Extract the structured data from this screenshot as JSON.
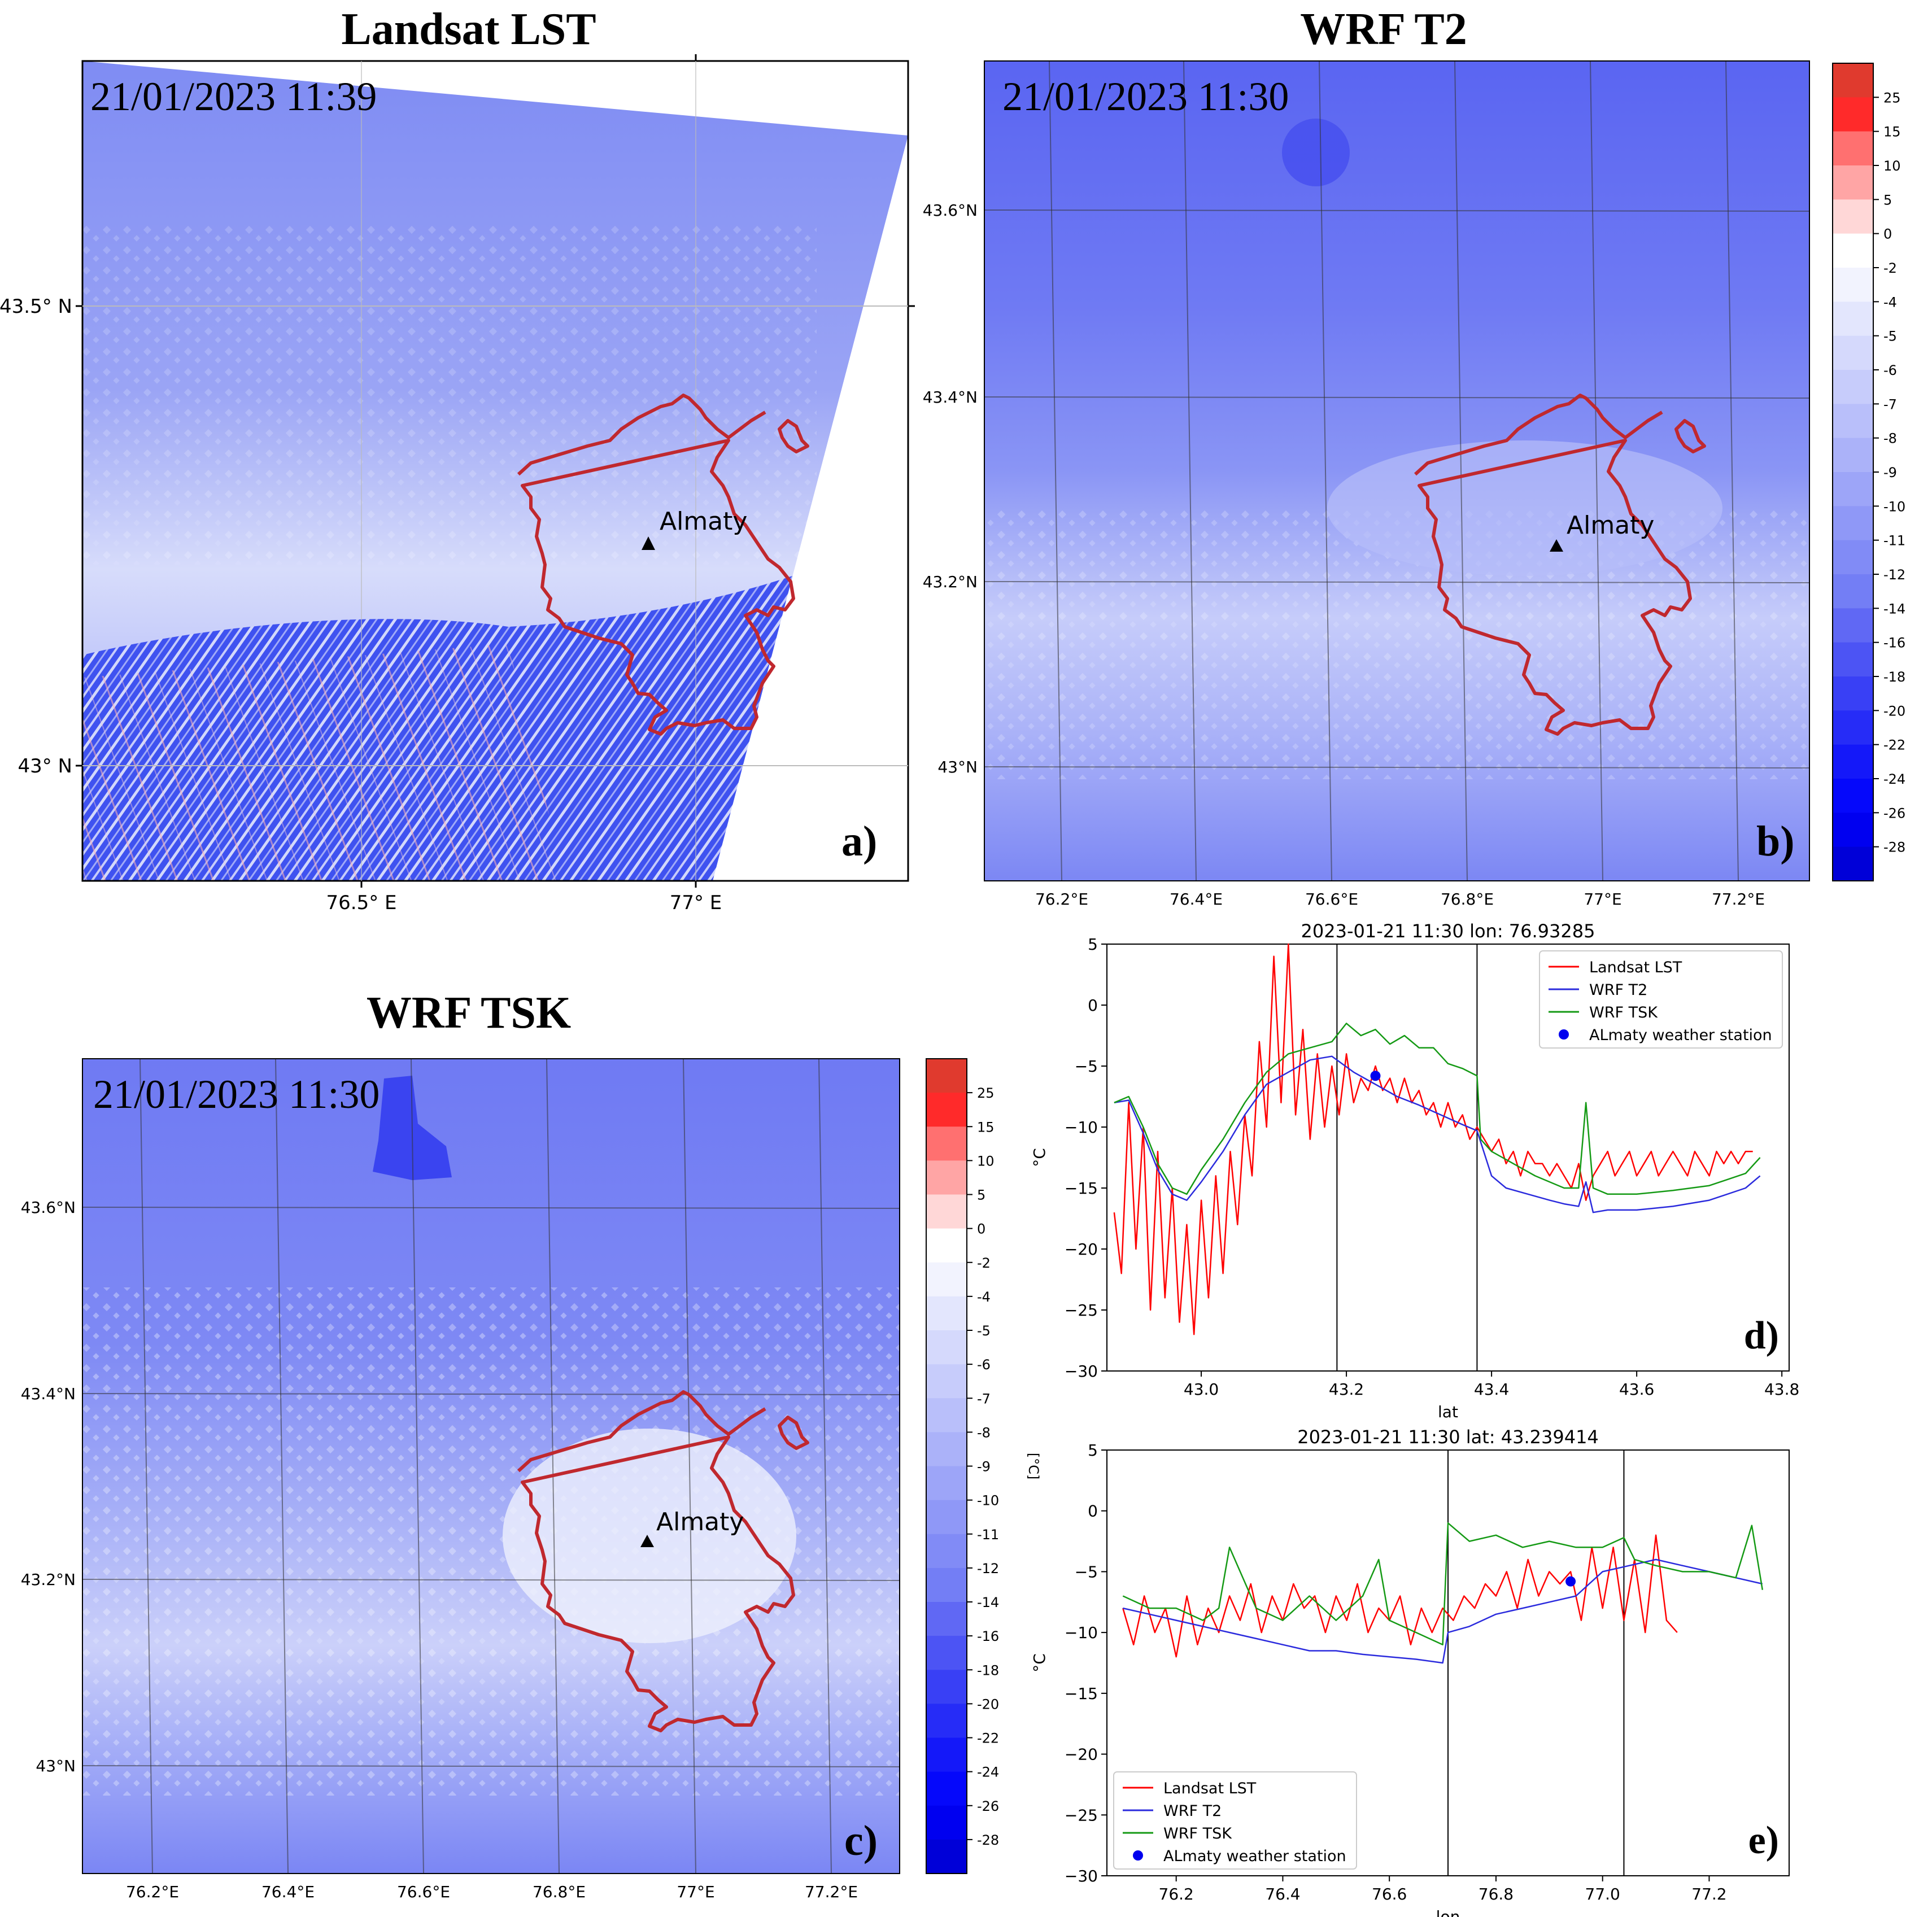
{
  "colors": {
    "map_dark": "#5566f2",
    "map_mid": "#7e8cf5",
    "map_light": "#c3c9f9",
    "map_white": "#f4f5fe",
    "boundary": "#c0282e",
    "lst_line": "#ff0000",
    "t2_line": "#2b2bdd",
    "tsk_line": "#159a15",
    "station": "#0000ee"
  },
  "icons": [
    "triangle-marker-icon",
    "station-dot-icon"
  ],
  "panels": {
    "a": {
      "title": "Landsat LST",
      "timestamp": "21/01/2023 11:39",
      "tag": "a)",
      "city": "Almaty",
      "xticks": [
        "76.5° E",
        "77° E"
      ],
      "yticks": [
        "43.5° N",
        "43° N"
      ]
    },
    "b": {
      "title": "WRF T2",
      "timestamp": "21/01/2023 11:30",
      "tag": "b)",
      "city": "Almaty",
      "xticks": [
        "76.2°E",
        "76.4°E",
        "76.6°E",
        "76.8°E",
        "77°E",
        "77.2°E"
      ],
      "yticks": [
        "43.6°N",
        "43.4°N",
        "43.2°N",
        "43°N"
      ]
    },
    "c": {
      "title": "WRF TSK",
      "timestamp": "21/01/2023 11:30",
      "tag": "c)",
      "city": "Almaty",
      "xticks": [
        "76.2°E",
        "76.4°E",
        "76.6°E",
        "76.8°E",
        "77°E",
        "77.2°E"
      ],
      "yticks": [
        "43.6°N",
        "43.4°N",
        "43.2°N",
        "43°N"
      ]
    }
  },
  "colorbar": {
    "unit": "[°C]",
    "ticks": [
      "25",
      "15",
      "10",
      "5",
      "0",
      "-2",
      "-4",
      "-5",
      "-6",
      "-7",
      "-8",
      "-9",
      "-10",
      "-11",
      "-12",
      "-14",
      "-16",
      "-18",
      "-20",
      "-22",
      "-24",
      "-26",
      "-28"
    ],
    "swatches": [
      "#e03a2e",
      "#ff2a2a",
      "#ff7070",
      "#ffa5a5",
      "#ffd7d7",
      "#ffffff",
      "#f2f3fe",
      "#e3e6fd",
      "#d5d9fc",
      "#c7ccfb",
      "#b9bffa",
      "#abb2f9",
      "#9da5f8",
      "#8f98f7",
      "#818bf6",
      "#737ef5",
      "#6068f4",
      "#4c54f4",
      "#3940f5",
      "#262cf7",
      "#1418f9",
      "#0508fb",
      "#0000f0",
      "#0000d8"
    ]
  },
  "chart_data": [
    {
      "type": "line",
      "panel": "d)",
      "title": "2023-01-21 11:30    lon: 76.93285",
      "xlabel": "lat",
      "ylabel": "°C",
      "xlim": [
        42.87,
        43.81
      ],
      "ylim": [
        -30,
        5
      ],
      "xticks": [
        43.0,
        43.2,
        43.4,
        43.6,
        43.8
      ],
      "xtick_labels": [
        "43.0",
        "43.2",
        "43.4",
        "43.6",
        "43.8"
      ],
      "yticks": [
        5,
        0,
        -5,
        -10,
        -15,
        -20,
        -25,
        -30
      ],
      "ytick_labels": [
        "5",
        "0",
        "−5",
        "−10",
        "−15",
        "−20",
        "−25",
        "−30"
      ],
      "vlines": [
        43.187,
        43.38
      ],
      "legend": [
        "Landsat LST",
        "WRF T2",
        "WRF TSK",
        "ALmaty weather station"
      ],
      "legend_loc": "upper right",
      "station": {
        "x": 43.24,
        "y": -5.8
      },
      "series": [
        {
          "name": "Landsat LST",
          "key": "lst",
          "x": [
            42.88,
            42.89,
            42.9,
            42.91,
            42.92,
            42.93,
            42.94,
            42.95,
            42.96,
            42.97,
            42.98,
            42.99,
            43.0,
            43.01,
            43.02,
            43.03,
            43.04,
            43.05,
            43.06,
            43.07,
            43.08,
            43.09,
            43.1,
            43.11,
            43.12,
            43.13,
            43.14,
            43.15,
            43.16,
            43.17,
            43.18,
            43.19,
            43.2,
            43.21,
            43.22,
            43.23,
            43.24,
            43.25,
            43.26,
            43.27,
            43.28,
            43.29,
            43.3,
            43.31,
            43.32,
            43.33,
            43.34,
            43.35,
            43.36,
            43.37,
            43.38,
            43.39,
            43.4,
            43.41,
            43.42,
            43.43,
            43.44,
            43.45,
            43.46,
            43.47,
            43.48,
            43.49,
            43.5,
            43.51,
            43.52,
            43.53,
            43.54,
            43.55,
            43.56,
            43.57,
            43.58,
            43.59,
            43.6,
            43.61,
            43.62,
            43.63,
            43.64,
            43.65,
            43.66,
            43.67,
            43.68,
            43.69,
            43.7,
            43.71,
            43.72,
            43.73,
            43.74,
            43.75,
            43.76
          ],
          "y": [
            -17,
            -22,
            -8,
            -20,
            -10,
            -25,
            -12,
            -24,
            -15,
            -26,
            -18,
            -27,
            -16,
            -24,
            -14,
            -22,
            -12,
            -18,
            -9,
            -14,
            -3,
            -10,
            4,
            -8,
            5,
            -9,
            -2,
            -11,
            -4,
            -10,
            -5,
            -9,
            -4,
            -8,
            -6,
            -7,
            -5,
            -7,
            -6,
            -8,
            -6,
            -8,
            -7,
            -9,
            -8,
            -10,
            -8,
            -10,
            -9,
            -11,
            -10,
            -11,
            -12,
            -11,
            -13,
            -12,
            -14,
            -12,
            -13,
            -13,
            -14,
            -13,
            -14,
            -15,
            -13,
            -16,
            -14,
            -13,
            -12,
            -14,
            -13,
            -12,
            -14,
            -13,
            -12,
            -14,
            -13,
            -12,
            -13,
            -14,
            -12,
            -13,
            -14,
            -12,
            -13,
            -12,
            -13,
            -12,
            -12
          ]
        },
        {
          "name": "WRF T2",
          "key": "t2",
          "x": [
            42.88,
            42.9,
            42.92,
            42.94,
            42.96,
            42.98,
            43.0,
            43.03,
            43.06,
            43.09,
            43.12,
            43.15,
            43.18,
            43.21,
            43.24,
            43.27,
            43.3,
            43.33,
            43.36,
            43.38,
            43.4,
            43.42,
            43.45,
            43.48,
            43.5,
            43.52,
            43.53,
            43.54,
            43.56,
            43.6,
            43.65,
            43.7,
            43.75,
            43.77
          ],
          "y": [
            -8,
            -7.8,
            -10.5,
            -13.5,
            -15.5,
            -16,
            -14.5,
            -12,
            -9,
            -6.5,
            -5.5,
            -4.5,
            -4.2,
            -5.5,
            -6.5,
            -7.5,
            -8.2,
            -9,
            -9.8,
            -10.3,
            -14,
            -15,
            -15.5,
            -16,
            -16.3,
            -16.5,
            -14.5,
            -17,
            -16.8,
            -16.8,
            -16.5,
            -16,
            -15,
            -14
          ]
        },
        {
          "name": "WRF TSK",
          "key": "tsk",
          "x": [
            42.88,
            42.9,
            42.92,
            42.94,
            42.96,
            42.98,
            43.0,
            43.03,
            43.06,
            43.09,
            43.12,
            43.15,
            43.18,
            43.2,
            43.22,
            43.24,
            43.26,
            43.28,
            43.3,
            43.32,
            43.34,
            43.36,
            43.38,
            43.385,
            43.4,
            43.43,
            43.46,
            43.5,
            43.52,
            43.53,
            43.54,
            43.56,
            43.6,
            43.65,
            43.7,
            43.75,
            43.77
          ],
          "y": [
            -8,
            -7.5,
            -10,
            -13,
            -15,
            -15.5,
            -13.5,
            -11,
            -8,
            -5.5,
            -4,
            -3.5,
            -3,
            -1.5,
            -2.5,
            -2,
            -3.2,
            -2.5,
            -3.5,
            -3.5,
            -4.8,
            -5.2,
            -5.8,
            -11,
            -12,
            -13,
            -14,
            -15,
            -15,
            -8,
            -15,
            -15.5,
            -15.5,
            -15.2,
            -14.8,
            -13.8,
            -12.5
          ]
        }
      ]
    },
    {
      "type": "line",
      "panel": "e)",
      "title": "2023-01-21 11:30     lat: 43.239414",
      "xlabel": "lon",
      "ylabel": "°C",
      "xlim": [
        76.07,
        77.35
      ],
      "ylim": [
        -30,
        5
      ],
      "xticks": [
        76.2,
        76.4,
        76.6,
        76.8,
        77.0,
        77.2
      ],
      "xtick_labels": [
        "76.2",
        "76.4",
        "76.6",
        "76.8",
        "77.0",
        "77.2"
      ],
      "yticks": [
        5,
        0,
        -5,
        -10,
        -15,
        -20,
        -25,
        -30
      ],
      "ytick_labels": [
        "5",
        "0",
        "−5",
        "−10",
        "−15",
        "−20",
        "−25",
        "−30"
      ],
      "vlines": [
        76.71,
        77.04
      ],
      "legend": [
        "Landsat LST",
        "WRF T2",
        "WRF TSK",
        "ALmaty weather station"
      ],
      "legend_loc": "lower left",
      "station": {
        "x": 76.94,
        "y": -5.8
      },
      "series": [
        {
          "name": "Landsat LST",
          "key": "lst",
          "x": [
            76.1,
            76.12,
            76.14,
            76.16,
            76.18,
            76.2,
            76.22,
            76.24,
            76.26,
            76.28,
            76.3,
            76.32,
            76.34,
            76.36,
            76.38,
            76.4,
            76.42,
            76.44,
            76.46,
            76.48,
            76.5,
            76.52,
            76.54,
            76.56,
            76.58,
            76.6,
            76.62,
            76.64,
            76.66,
            76.68,
            76.7,
            76.72,
            76.74,
            76.76,
            76.78,
            76.8,
            76.82,
            76.84,
            76.86,
            76.88,
            76.9,
            76.92,
            76.94,
            76.96,
            76.98,
            77.0,
            77.02,
            77.04,
            77.06,
            77.08,
            77.1,
            77.12,
            77.14
          ],
          "y": [
            -8,
            -11,
            -7,
            -10,
            -8,
            -12,
            -7,
            -11,
            -8,
            -10,
            -7,
            -9,
            -6,
            -10,
            -7,
            -9,
            -6,
            -8,
            -7,
            -10,
            -7,
            -9,
            -6,
            -10,
            -8,
            -9,
            -7,
            -11,
            -8,
            -10,
            -8,
            -9,
            -7,
            -8,
            -6,
            -7,
            -5,
            -8,
            -4,
            -7,
            -5,
            -6,
            -5,
            -9,
            -3,
            -8,
            -3,
            -9,
            -4,
            -10,
            -2,
            -9,
            -10
          ]
        },
        {
          "name": "WRF T2",
          "key": "t2",
          "x": [
            76.1,
            76.15,
            76.2,
            76.25,
            76.3,
            76.35,
            76.4,
            76.45,
            76.5,
            76.55,
            76.6,
            76.65,
            76.7,
            76.71,
            76.75,
            76.8,
            76.85,
            76.9,
            76.95,
            77.0,
            77.05,
            77.1,
            77.15,
            77.2,
            77.25,
            77.3
          ],
          "y": [
            -8,
            -8.5,
            -9,
            -9.5,
            -10,
            -10.5,
            -11,
            -11.5,
            -11.5,
            -11.8,
            -12,
            -12.2,
            -12.5,
            -10,
            -9.5,
            -8.5,
            -8,
            -7.5,
            -7,
            -5,
            -4.5,
            -4,
            -4.5,
            -5,
            -5.5,
            -6
          ]
        },
        {
          "name": "WRF TSK",
          "key": "tsk",
          "x": [
            76.1,
            76.15,
            76.2,
            76.25,
            76.28,
            76.3,
            76.35,
            76.4,
            76.45,
            76.5,
            76.55,
            76.58,
            76.6,
            76.65,
            76.7,
            76.71,
            76.75,
            76.8,
            76.85,
            76.9,
            76.95,
            77.0,
            77.04,
            77.06,
            77.1,
            77.15,
            77.2,
            77.25,
            77.28,
            77.3
          ],
          "y": [
            -7,
            -8,
            -8,
            -9,
            -8,
            -3,
            -8,
            -9,
            -7,
            -9,
            -7,
            -4,
            -9,
            -10,
            -11,
            -1,
            -2.5,
            -2,
            -3,
            -2.5,
            -3,
            -3,
            -2.2,
            -4,
            -4.5,
            -5,
            -5,
            -5.5,
            -1.2,
            -6.5
          ]
        }
      ]
    }
  ]
}
